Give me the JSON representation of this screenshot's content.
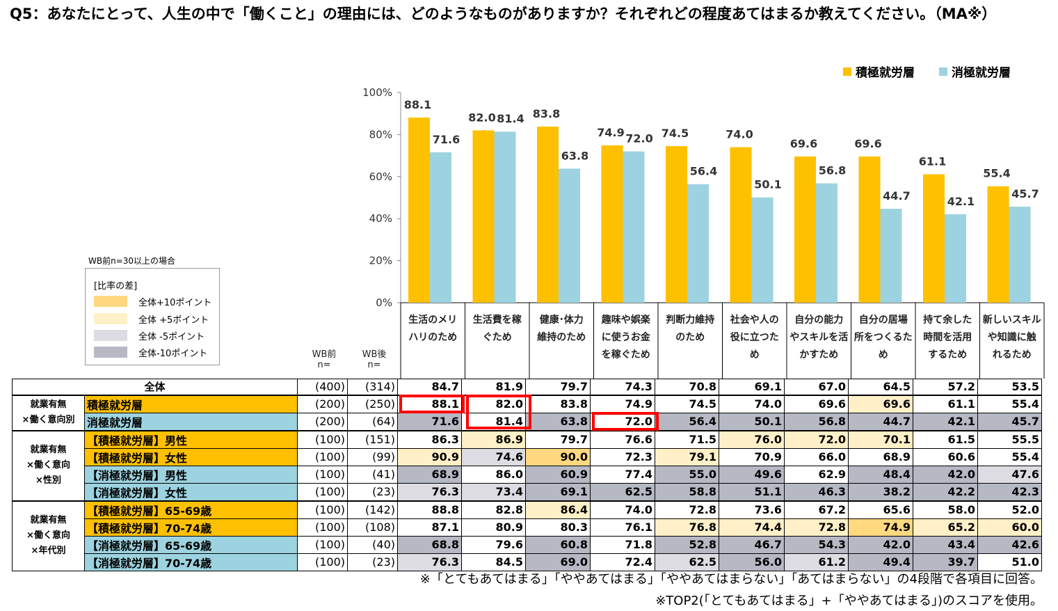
{
  "title": "Q5：あなたにとって、人生の中で「働くこと」の理由には、どのようなものがありますか？それぞれどの程度あてはまるか教えてください。（MA※）",
  "legend": {
    "positive": "積極就労層",
    "negative": "消極就労層"
  },
  "colors": {
    "positive": "#ffc000",
    "negative": "#9dd3e0",
    "plus10": "#ffd880",
    "plus5": "#fff0c8",
    "minus5": "#dcdce2",
    "minus10": "#b6b8c4"
  },
  "chart_data": {
    "type": "bar",
    "categories": [
      "生活のメリハリのため",
      "生活費を稼ぐため",
      "健康・体力維持のため",
      "趣味や娯楽に使うお金を稼ぐため",
      "判断力維持のため",
      "社会や人の役に立つため",
      "自分の能力やスキルを活かすため",
      "自分の居場所をつくるため",
      "持て余した時間を活用するため",
      "新しいスキルや知識に触れるため"
    ],
    "series": [
      {
        "name": "積極就労層",
        "values": [
          88.1,
          82.0,
          83.8,
          74.9,
          74.5,
          74.0,
          69.6,
          69.6,
          61.1,
          55.4
        ]
      },
      {
        "name": "消極就労層",
        "values": [
          71.6,
          81.4,
          63.8,
          72.0,
          56.4,
          50.1,
          56.8,
          44.7,
          42.1,
          45.7
        ]
      }
    ],
    "yticks": [
      "100%",
      "80%",
      "60%",
      "40%",
      "20%",
      "0%"
    ],
    "ylim": [
      0,
      100
    ],
    "legend_position": "top-right"
  },
  "category_labels": [
    [
      "生活のメリ",
      "ハリのため"
    ],
    [
      "生活費を稼",
      "ぐため"
    ],
    [
      "健康･体力",
      "維持のため"
    ],
    [
      "趣味や娯楽",
      "に使うお金",
      "を稼ぐため"
    ],
    [
      "判断力維持",
      "のため"
    ],
    [
      "社会や人の",
      "役に立つた",
      "め"
    ],
    [
      "自分の能力",
      "やスキルを活",
      "かすため"
    ],
    [
      "自分の居場",
      "所をつくるた",
      "め"
    ],
    [
      "持て余した",
      "時間を活用",
      "するため"
    ],
    [
      "新しいスキル",
      "や知識に触",
      "れるため"
    ]
  ],
  "key": {
    "note": "WB前n=30以上の場合",
    "title": "[比率の差]",
    "items": [
      "全体+10ポイント",
      "全体 +5ポイント",
      "全体 -5ポイント",
      "全体-10ポイント"
    ]
  },
  "wb_headers": {
    "before": [
      "WB前",
      "n="
    ],
    "after": [
      "WB後",
      "n="
    ]
  },
  "table": {
    "overall": {
      "label": "全体",
      "nb": "(400)",
      "na": "(314)",
      "values": [
        "84.7",
        "81.9",
        "79.7",
        "74.3",
        "70.8",
        "69.1",
        "67.0",
        "64.5",
        "57.2",
        "53.5"
      ]
    },
    "groups": [
      {
        "label": [
          "就業有無",
          "×働く意向別"
        ],
        "rows": [
          {
            "label": "積極就労層",
            "type": "pos",
            "nb": "(200)",
            "na": "(250)",
            "values": [
              "88.1",
              "82.0",
              "83.8",
              "74.9",
              "74.5",
              "74.0",
              "69.6",
              "69.6",
              "61.1",
              "55.4"
            ],
            "shade": [
              "",
              "",
              "",
              "",
              "",
              "",
              "",
              "p5",
              "",
              ""
            ]
          },
          {
            "label": "消極就労層",
            "type": "neg",
            "nb": "(200)",
            "na": "(64)",
            "values": [
              "71.6",
              "81.4",
              "63.8",
              "72.0",
              "56.4",
              "50.1",
              "56.8",
              "44.7",
              "42.1",
              "45.7"
            ],
            "shade": [
              "m10",
              "",
              "m10",
              "",
              "m10",
              "m10",
              "m10",
              "m10",
              "m10",
              "m10"
            ]
          }
        ]
      },
      {
        "label": [
          "就業有無",
          "×働く意向",
          "×性別"
        ],
        "rows": [
          {
            "label": "【積極就労層】男性",
            "type": "pos",
            "nb": "(100)",
            "na": "(151)",
            "values": [
              "86.3",
              "86.9",
              "79.7",
              "76.6",
              "71.5",
              "76.0",
              "72.0",
              "70.1",
              "61.5",
              "55.5"
            ],
            "shade": [
              "",
              "p5",
              "",
              "",
              "",
              "p5",
              "p5",
              "p5",
              "",
              ""
            ]
          },
          {
            "label": "【積極就労層】女性",
            "type": "pos",
            "nb": "(100)",
            "na": "(99)",
            "values": [
              "90.9",
              "74.6",
              "90.0",
              "72.3",
              "79.1",
              "70.9",
              "66.0",
              "68.9",
              "60.6",
              "55.4"
            ],
            "shade": [
              "p5",
              "m5",
              "p10",
              "",
              "p5",
              "",
              "",
              "",
              "",
              ""
            ]
          },
          {
            "label": "【消極就労層】男性",
            "type": "neg",
            "nb": "(100)",
            "na": "(41)",
            "values": [
              "68.9",
              "86.0",
              "60.9",
              "77.4",
              "55.0",
              "49.6",
              "62.9",
              "48.4",
              "42.0",
              "47.6"
            ],
            "shade": [
              "m10",
              "",
              "m10",
              "",
              "m10",
              "m10",
              "",
              "m10",
              "m10",
              "m5"
            ]
          },
          {
            "label": "【消極就労層】女性",
            "type": "neg",
            "nb": "(100)",
            "na": "(23)",
            "values": [
              "76.3",
              "73.4",
              "69.1",
              "62.5",
              "58.8",
              "51.1",
              "46.3",
              "38.2",
              "42.2",
              "42.3"
            ],
            "shade": [
              "m5",
              "m5",
              "m10",
              "m10",
              "m10",
              "m10",
              "m10",
              "m10",
              "m10",
              "m10"
            ]
          }
        ]
      },
      {
        "label": [
          "就業有無",
          "×働く意向",
          "×年代別"
        ],
        "rows": [
          {
            "label": "【積極就労層】65-69歳",
            "type": "pos",
            "nb": "(100)",
            "na": "(142)",
            "values": [
              "88.8",
              "82.8",
              "86.4",
              "74.0",
              "72.8",
              "73.6",
              "67.2",
              "65.6",
              "58.0",
              "52.0"
            ],
            "shade": [
              "",
              "",
              "p5",
              "",
              "",
              "",
              "",
              "",
              "",
              ""
            ]
          },
          {
            "label": "【積極就労層】70-74歳",
            "type": "pos",
            "nb": "(100)",
            "na": "(108)",
            "values": [
              "87.1",
              "80.9",
              "80.3",
              "76.1",
              "76.8",
              "74.4",
              "72.8",
              "74.9",
              "65.2",
              "60.0"
            ],
            "shade": [
              "",
              "",
              "",
              "",
              "p5",
              "p5",
              "p5",
              "p10",
              "p5",
              "p5"
            ]
          },
          {
            "label": "【消極就労層】65-69歳",
            "type": "neg",
            "nb": "(100)",
            "na": "(40)",
            "values": [
              "68.8",
              "79.6",
              "60.8",
              "71.8",
              "52.8",
              "46.7",
              "54.3",
              "42.0",
              "43.4",
              "42.6"
            ],
            "shade": [
              "m10",
              "",
              "m10",
              "",
              "m10",
              "m10",
              "m10",
              "m10",
              "m10",
              "m10"
            ]
          },
          {
            "label": "【消極就労層】70-74歳",
            "type": "neg",
            "nb": "(100)",
            "na": "(23)",
            "values": [
              "76.3",
              "84.5",
              "69.0",
              "72.4",
              "62.5",
              "56.0",
              "61.2",
              "49.4",
              "39.7",
              "51.0"
            ],
            "shade": [
              "m5",
              "",
              "m10",
              "",
              "m5",
              "m10",
              "m5",
              "m10",
              "m10",
              ""
            ]
          }
        ]
      }
    ]
  },
  "footnotes": [
    "※「とてもあてはまる」「ややあてはまる」「ややあてはまらない」「あてはまらない」の4段階で各項目に回答。",
    "※TOP2(「とてもあてはまる」+「ややあてはまる」)のスコアを使用。"
  ]
}
